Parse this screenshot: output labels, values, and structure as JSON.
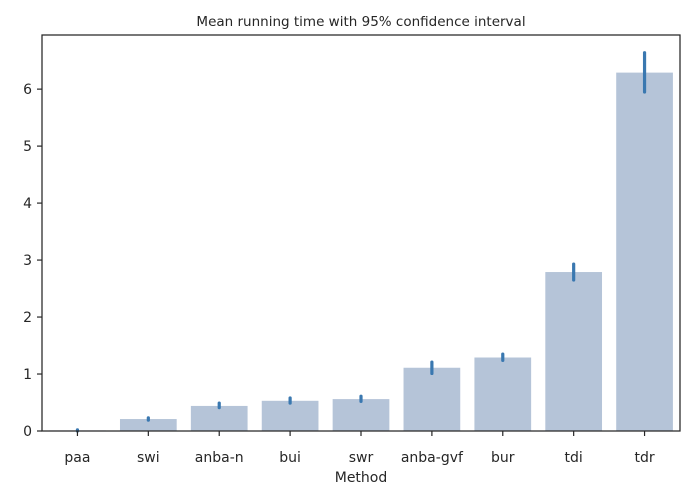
{
  "chart_data": {
    "type": "bar",
    "title": "Mean running time with 95% confidence interval",
    "xlabel": "Method",
    "ylabel": "",
    "categories": [
      "paa",
      "swi",
      "anba-n",
      "bui",
      "swr",
      "anba-gvf",
      "bur",
      "tdi",
      "tdr"
    ],
    "values": [
      0.01,
      0.21,
      0.44,
      0.53,
      0.56,
      1.11,
      1.29,
      2.79,
      6.29
    ],
    "ci_low": [
      0.0,
      0.19,
      0.41,
      0.49,
      0.52,
      1.01,
      1.24,
      2.65,
      5.95
    ],
    "ci_high": [
      0.02,
      0.23,
      0.49,
      0.58,
      0.61,
      1.21,
      1.35,
      2.93,
      6.64
    ],
    "yticks": [
      0,
      1,
      2,
      3,
      4,
      5,
      6
    ],
    "ylim": [
      0,
      6.95
    ],
    "grid": false,
    "bar_color": "#b5c4d8",
    "error_color": "#3a78b0"
  }
}
